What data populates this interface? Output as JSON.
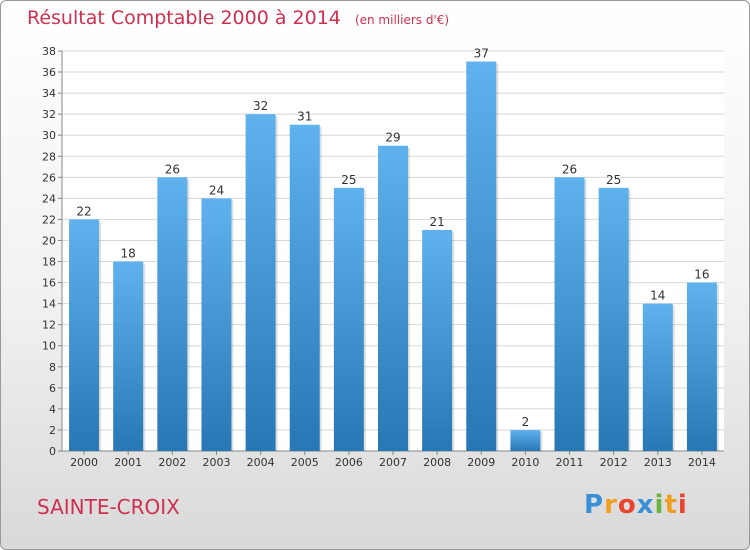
{
  "chart_data": {
    "type": "bar",
    "title": "Résultat Comptable 2000 à 2014",
    "unit_label": "(en milliers d'€)",
    "categories": [
      "2000",
      "2001",
      "2002",
      "2003",
      "2004",
      "2005",
      "2006",
      "2007",
      "2008",
      "2009",
      "2010",
      "2011",
      "2012",
      "2013",
      "2014"
    ],
    "values": [
      22,
      18,
      26,
      24,
      32,
      31,
      25,
      29,
      21,
      37,
      2,
      26,
      25,
      14,
      16
    ],
    "ylim": [
      0,
      38
    ],
    "yticks": [
      0,
      2,
      4,
      6,
      8,
      10,
      12,
      14,
      16,
      18,
      20,
      22,
      24,
      26,
      28,
      30,
      32,
      34,
      36,
      38
    ],
    "grid": true,
    "bar_color_top": "#5fb2ee",
    "bar_color_bottom": "#2877b5"
  },
  "footer": {
    "location": "SAINTE-CROIX",
    "logo_letters": [
      "P",
      "r",
      "o",
      "x",
      "i",
      "t",
      "i"
    ],
    "logo_colors": [
      "#3a8fd6",
      "#f0a020",
      "#e8452e",
      "#3a8fd6",
      "#6cb33f",
      "#f0a020",
      "#e8452e"
    ]
  },
  "colors": {
    "title": "#d0304f",
    "grid": "#d8d8d8",
    "axis_text": "#333333"
  }
}
